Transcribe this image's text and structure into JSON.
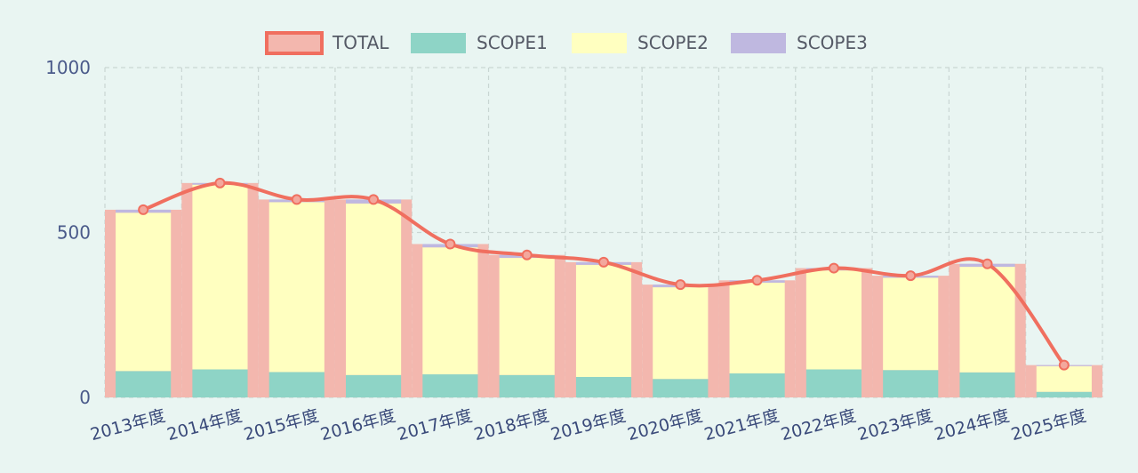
{
  "chart_data": {
    "type": "bar",
    "stacked": true,
    "categories": [
      "2013年度",
      "2014年度",
      "2015年度",
      "2016年度",
      "2017年度",
      "2018年度",
      "2019年度",
      "2020年度",
      "2021年度",
      "2022年度",
      "2023年度",
      "2024年度",
      "2025年度"
    ],
    "series": [
      {
        "name": "TOTAL",
        "kind": "bar+line",
        "values": [
          569,
          650,
          600,
          600,
          465,
          432,
          410,
          342,
          355,
          392,
          369,
          405,
          98
        ],
        "color": "#f06f5f",
        "fill": "#f3b7ae"
      },
      {
        "name": "SCOPE1",
        "kind": "stacked-bar",
        "values": [
          80,
          85,
          77,
          68,
          70,
          68,
          62,
          56,
          73,
          85,
          83,
          76,
          17
        ],
        "color": "#8ed4c6"
      },
      {
        "name": "SCOPE2",
        "kind": "stacked-bar",
        "values": [
          480,
          560,
          515,
          520,
          385,
          355,
          340,
          278,
          275,
          300,
          280,
          320,
          78
        ],
        "color": "#ffffc0"
      },
      {
        "name": "SCOPE3",
        "kind": "stacked-bar",
        "values": [
          9,
          5,
          8,
          12,
          10,
          9,
          8,
          8,
          7,
          7,
          6,
          9,
          3
        ],
        "color": "#bfb8e0"
      }
    ],
    "ylim": [
      0,
      1000
    ],
    "yticks": [
      "0",
      "500",
      "1000"
    ],
    "grid": true,
    "legend": "top-center"
  }
}
